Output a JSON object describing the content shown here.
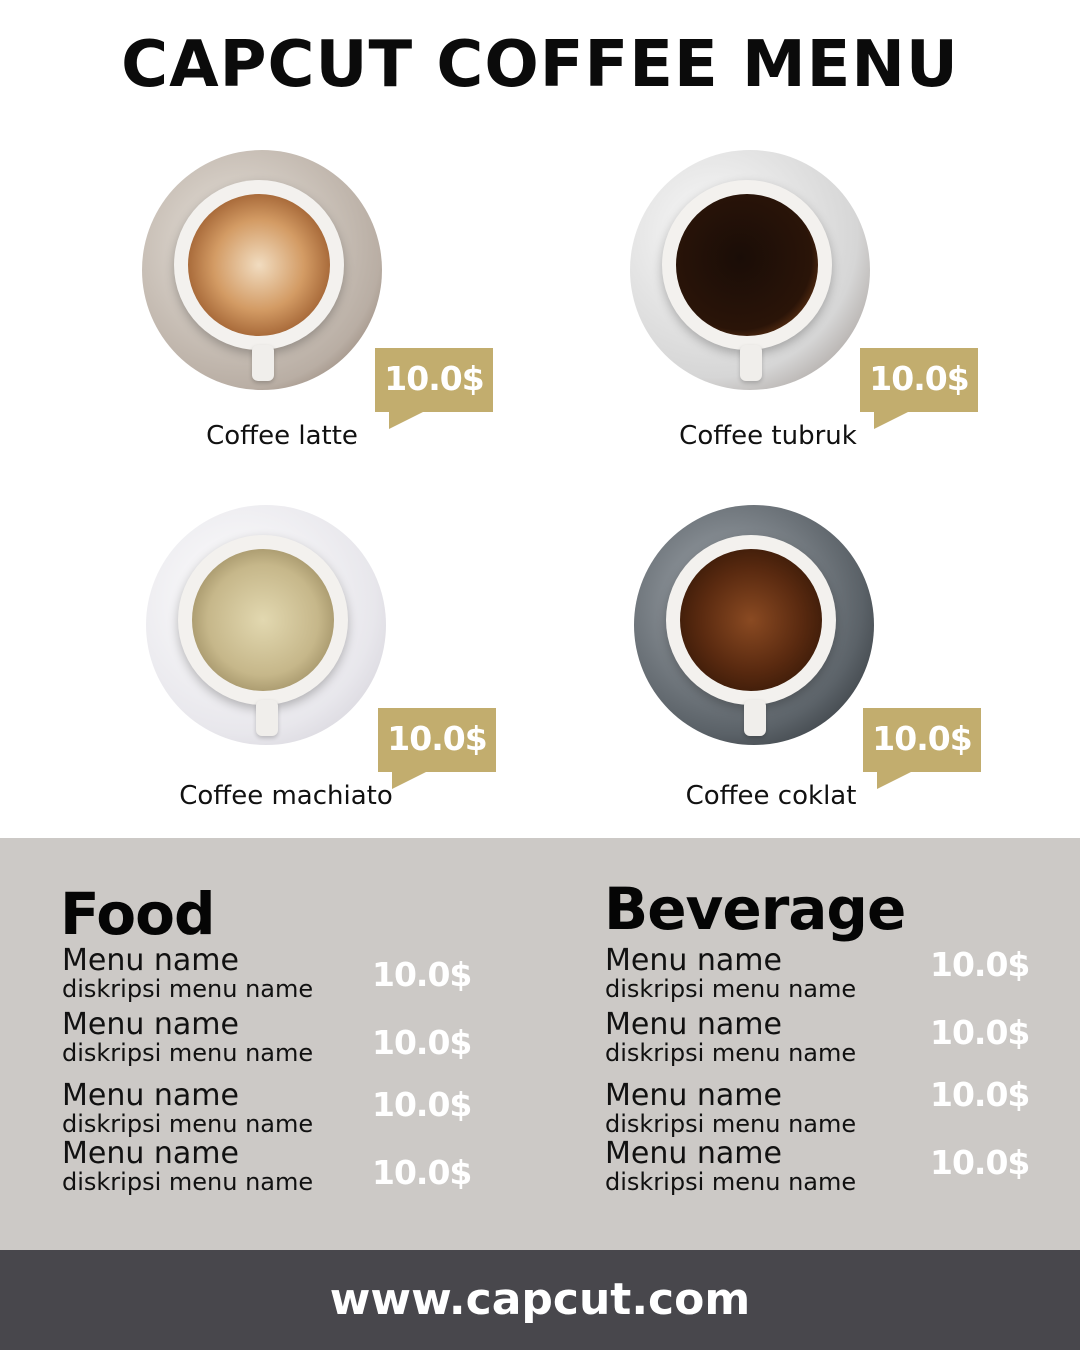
{
  "title": "CAPCUT COFFEE MENU",
  "colors": {
    "tag": "#c2ad6e",
    "lower_bg": "#ccc9c6",
    "footer_bg": "#48474c"
  },
  "coffees": [
    {
      "name": "Coffee latte",
      "price": "10.0$"
    },
    {
      "name": "Coffee tubruk",
      "price": "10.0$"
    },
    {
      "name": "Coffee machiato",
      "price": "10.0$"
    },
    {
      "name": "Coffee coklat",
      "price": "10.0$"
    }
  ],
  "food": {
    "title": "Food",
    "items": [
      {
        "name": "Menu name",
        "desc": "diskripsi menu name",
        "price": "10.0$"
      },
      {
        "name": "Menu name",
        "desc": "diskripsi menu name",
        "price": "10.0$"
      },
      {
        "name": "Menu name",
        "desc": "diskripsi menu name",
        "price": "10.0$"
      },
      {
        "name": "Menu name",
        "desc": "diskripsi menu name",
        "price": "10.0$"
      }
    ]
  },
  "beverage": {
    "title": "Beverage",
    "items": [
      {
        "name": "Menu name",
        "desc": "diskripsi menu name",
        "price": "10.0$"
      },
      {
        "name": "Menu name",
        "desc": "diskripsi menu name",
        "price": "10.0$"
      },
      {
        "name": "Menu name",
        "desc": "diskripsi menu name",
        "price": "10.0$"
      },
      {
        "name": "Menu name",
        "desc": "diskripsi menu name",
        "price": "10.0$"
      }
    ]
  },
  "footer": {
    "url": "www.capcut.com"
  }
}
